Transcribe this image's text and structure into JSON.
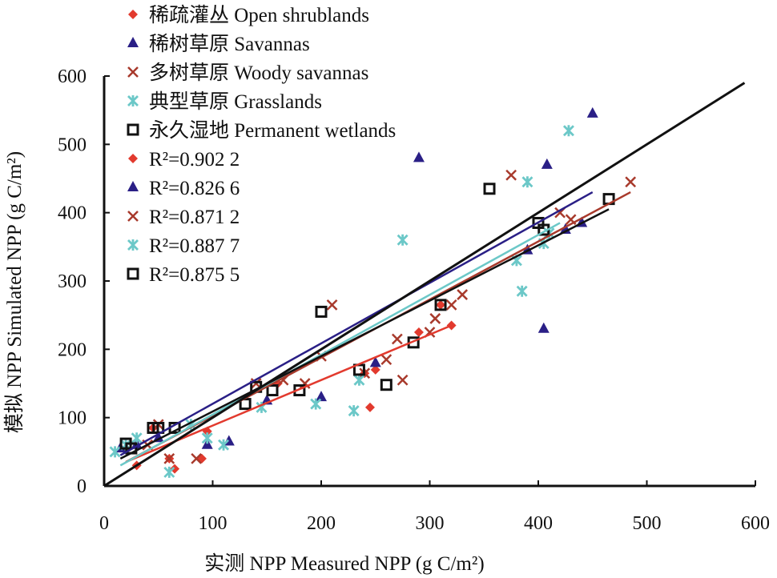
{
  "chart_data": {
    "type": "scatter",
    "xlabel": "实测 NPP Measured NPP (g C/m²)",
    "ylabel": "模拟 NPP Simulated NPP (g C/m²)",
    "xlim": [
      0,
      600
    ],
    "ylim": [
      0,
      600
    ],
    "xticks": [
      "0",
      "100",
      "200",
      "300",
      "400",
      "500",
      "600"
    ],
    "yticks": [
      "0",
      "100",
      "200",
      "300",
      "400",
      "500",
      "600"
    ],
    "legend_position": "top-left",
    "one_to_one_line": {
      "from": [
        0,
        0
      ],
      "to": [
        590,
        590
      ],
      "color": "#111111"
    },
    "series": [
      {
        "name": "稀疏灌丛 Open shrublands",
        "marker": "diamond",
        "color": "#e23a2e",
        "r2": "R²=0.902 2",
        "fit": [
          [
            20,
            35
          ],
          [
            320,
            235
          ]
        ],
        "points": [
          [
            20,
            55
          ],
          [
            30,
            30
          ],
          [
            45,
            85
          ],
          [
            60,
            40
          ],
          [
            65,
            25
          ],
          [
            90,
            40
          ],
          [
            95,
            80
          ],
          [
            160,
            150
          ],
          [
            245,
            115
          ],
          [
            240,
            165
          ],
          [
            250,
            170
          ],
          [
            290,
            225
          ],
          [
            310,
            265
          ],
          [
            320,
            235
          ]
        ]
      },
      {
        "name": "稀树草原 Savannas",
        "marker": "triangle",
        "color": "#2a1f86",
        "r2": "R²=0.826 6",
        "fit": [
          [
            15,
            45
          ],
          [
            450,
            430
          ]
        ],
        "points": [
          [
            15,
            55
          ],
          [
            30,
            60
          ],
          [
            50,
            70
          ],
          [
            95,
            60
          ],
          [
            115,
            65
          ],
          [
            150,
            125
          ],
          [
            200,
            130
          ],
          [
            250,
            180
          ],
          [
            290,
            480
          ],
          [
            390,
            345
          ],
          [
            405,
            230
          ],
          [
            408,
            470
          ],
          [
            425,
            375
          ],
          [
            440,
            385
          ],
          [
            450,
            545
          ]
        ]
      },
      {
        "name": "多树草原 Woody savannas",
        "marker": "x",
        "color": "#a83a2c",
        "r2": "R²=0.871 2",
        "fit": [
          [
            20,
            35
          ],
          [
            485,
            430
          ]
        ],
        "points": [
          [
            40,
            60
          ],
          [
            50,
            90
          ],
          [
            60,
            40
          ],
          [
            85,
            40
          ],
          [
            140,
            150
          ],
          [
            165,
            155
          ],
          [
            185,
            150
          ],
          [
            200,
            190
          ],
          [
            210,
            265
          ],
          [
            240,
            165
          ],
          [
            260,
            185
          ],
          [
            270,
            215
          ],
          [
            275,
            155
          ],
          [
            300,
            225
          ],
          [
            305,
            245
          ],
          [
            320,
            265
          ],
          [
            330,
            280
          ],
          [
            375,
            455
          ],
          [
            420,
            400
          ],
          [
            430,
            390
          ],
          [
            485,
            445
          ]
        ]
      },
      {
        "name": "典型草原 Grasslands",
        "marker": "asterisk",
        "color": "#6cc8c8",
        "r2": "R²=0.887 7",
        "fit": [
          [
            15,
            30
          ],
          [
            420,
            385
          ]
        ],
        "points": [
          [
            10,
            50
          ],
          [
            20,
            60
          ],
          [
            30,
            70
          ],
          [
            60,
            20
          ],
          [
            80,
            90
          ],
          [
            95,
            70
          ],
          [
            110,
            60
          ],
          [
            145,
            115
          ],
          [
            195,
            120
          ],
          [
            230,
            110
          ],
          [
            235,
            155
          ],
          [
            275,
            360
          ],
          [
            380,
            330
          ],
          [
            385,
            285
          ],
          [
            390,
            445
          ],
          [
            405,
            355
          ],
          [
            410,
            370
          ],
          [
            428,
            520
          ]
        ]
      },
      {
        "name": "永久湿地 Permanent wetlands",
        "marker": "square",
        "color": "#111111",
        "r2": "R²=0.875 5",
        "fit": [
          [
            15,
            40
          ],
          [
            465,
            405
          ]
        ],
        "points": [
          [
            20,
            62
          ],
          [
            25,
            55
          ],
          [
            45,
            85
          ],
          [
            50,
            85
          ],
          [
            65,
            85
          ],
          [
            130,
            120
          ],
          [
            140,
            145
          ],
          [
            155,
            140
          ],
          [
            180,
            140
          ],
          [
            200,
            255
          ],
          [
            235,
            170
          ],
          [
            260,
            148
          ],
          [
            285,
            210
          ],
          [
            310,
            265
          ],
          [
            355,
            435
          ],
          [
            400,
            385
          ],
          [
            405,
            375
          ],
          [
            465,
            420
          ]
        ]
      }
    ]
  }
}
